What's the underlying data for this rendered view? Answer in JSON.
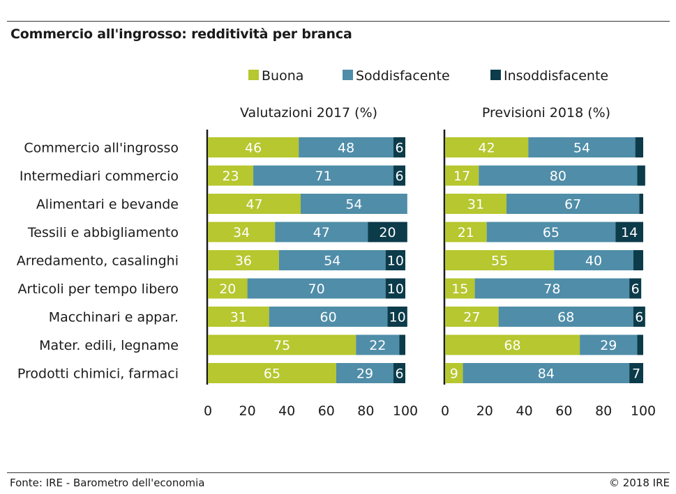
{
  "title": "Commercio all'ingrosso: redditività per branca",
  "footer": {
    "source": "Fonte: IRE - Barometro dell'economia",
    "copyright": "© 2018 IRE"
  },
  "colors": {
    "Buona": "#b6c72f",
    "Soddisfacente": "#4f8da8",
    "Insoddisfacente": "#0c3b4a"
  },
  "chart_data": [
    {
      "type": "bar",
      "orientation": "horizontal",
      "stacked": true,
      "title": "Valutazioni 2017 (%)",
      "categories": [
        "Commercio all'ingrosso",
        "Intermediari commercio",
        "Alimentari e bevande",
        "Tessili e abbigliamento",
        "Arredamento, casalinghi",
        "Articoli per tempo libero",
        "Macchinari e appar.",
        "Mater. edili, legname",
        "Prodotti chimici, farmaci"
      ],
      "series": [
        {
          "name": "Buona",
          "values": [
            46,
            23,
            47,
            34,
            36,
            20,
            31,
            75,
            65
          ]
        },
        {
          "name": "Soddisfacente",
          "values": [
            48,
            71,
            54,
            47,
            54,
            70,
            60,
            22,
            29
          ]
        },
        {
          "name": "Insoddisfacente",
          "values": [
            6,
            6,
            0,
            20,
            10,
            10,
            10,
            3,
            6
          ]
        }
      ],
      "value_labels": [
        [
          "46",
          "48",
          "6"
        ],
        [
          "23",
          "71",
          "6"
        ],
        [
          "47",
          "54",
          ""
        ],
        [
          "34",
          "47",
          "20"
        ],
        [
          "36",
          "54",
          "10"
        ],
        [
          "20",
          "70",
          "10"
        ],
        [
          "31",
          "60",
          "10"
        ],
        [
          "75",
          "22",
          ""
        ],
        [
          "65",
          "29",
          "6"
        ]
      ],
      "xlim": [
        0,
        100
      ],
      "xticks": [
        "0",
        "20",
        "40",
        "60",
        "80",
        "100"
      ],
      "legend": "top",
      "grid": false
    },
    {
      "type": "bar",
      "orientation": "horizontal",
      "stacked": true,
      "title": "Previsioni 2018 (%)",
      "categories": [
        "Commercio all'ingrosso",
        "Intermediari commercio",
        "Alimentari e bevande",
        "Tessili e abbigliamento",
        "Arredamento, casalinghi",
        "Articoli per tempo libero",
        "Macchinari e appar.",
        "Mater. edili, legname",
        "Prodotti chimici, farmaci"
      ],
      "series": [
        {
          "name": "Buona",
          "values": [
            42,
            17,
            31,
            21,
            55,
            15,
            27,
            68,
            9
          ]
        },
        {
          "name": "Soddisfacente",
          "values": [
            54,
            80,
            67,
            65,
            40,
            78,
            68,
            29,
            84
          ]
        },
        {
          "name": "Insoddisfacente",
          "values": [
            4,
            4,
            2,
            14,
            5,
            6,
            6,
            3,
            7
          ]
        }
      ],
      "value_labels": [
        [
          "42",
          "54",
          ""
        ],
        [
          "17",
          "80",
          ""
        ],
        [
          "31",
          "67",
          ""
        ],
        [
          "21",
          "65",
          "14"
        ],
        [
          "55",
          "40",
          ""
        ],
        [
          "15",
          "78",
          "6"
        ],
        [
          "27",
          "68",
          "6"
        ],
        [
          "68",
          "29",
          ""
        ],
        [
          "9",
          "84",
          "7"
        ]
      ],
      "xlim": [
        0,
        100
      ],
      "xticks": [
        "0",
        "20",
        "40",
        "60",
        "80",
        "100"
      ],
      "legend": "top",
      "grid": false
    }
  ]
}
